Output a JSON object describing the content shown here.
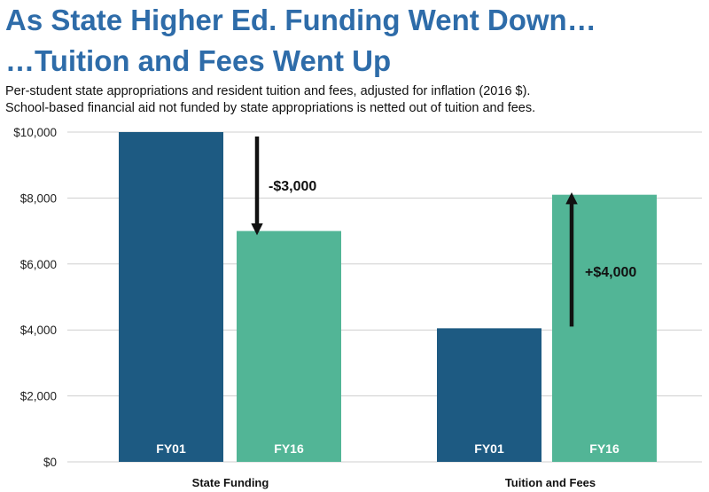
{
  "header": {
    "title_line1": "As State Higher Ed. Funding Went Down…",
    "title_line2": "…Tuition and Fees Went Up",
    "subtitle_line1": "Per-student state appropriations and resident tuition and fees, adjusted for inflation (2016 $).",
    "subtitle_line2": "School-based financial aid not funded by state appropriations is netted out of tuition and fees."
  },
  "colors": {
    "title": "#2e6ca9",
    "FY01": "#1d5a82",
    "FY16": "#52b596",
    "grid": "#cfcfcf"
  },
  "chart_data": {
    "type": "bar",
    "categories": [
      "State Funding",
      "Tuition and Fees"
    ],
    "series": [
      {
        "name": "FY01",
        "values": [
          10000,
          4050
        ]
      },
      {
        "name": "FY16",
        "values": [
          7000,
          8100
        ]
      }
    ],
    "ylim": [
      0,
      10000
    ],
    "yticks": [
      0,
      2000,
      4000,
      6000,
      8000,
      10000
    ],
    "ytick_labels": [
      "$0",
      "$2,000",
      "$4,000",
      "$6,000",
      "$8,000",
      "$10,000"
    ],
    "grid": true,
    "annotations": [
      {
        "category": 0,
        "text": "-$3,000",
        "direction": "down",
        "from": 10000,
        "to": 7000
      },
      {
        "category": 1,
        "text": "+$4,000",
        "direction": "up",
        "from": 4050,
        "to": 8100
      }
    ]
  }
}
